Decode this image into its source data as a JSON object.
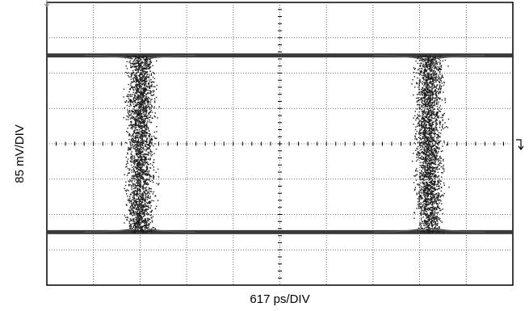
{
  "chart_data": {
    "type": "scatter",
    "subtype": "eye-diagram",
    "title": "",
    "xlabel": "617 ps/DIV",
    "ylabel": "85 mV/DIV",
    "divisions": {
      "x": 10,
      "y": 8
    },
    "xlim": [
      0,
      10
    ],
    "ylim": [
      -4,
      4
    ],
    "grid": true,
    "levels": {
      "high": 2.5,
      "low": -2.5
    },
    "crossings": [
      {
        "center": 2.0,
        "half_width": 0.25
      },
      {
        "center": 8.2,
        "half_width": 0.25
      }
    ],
    "zero_line": 0,
    "colors": {
      "trace": "#1a1a1a",
      "grid": "#444444",
      "frame": "#000000"
    }
  }
}
